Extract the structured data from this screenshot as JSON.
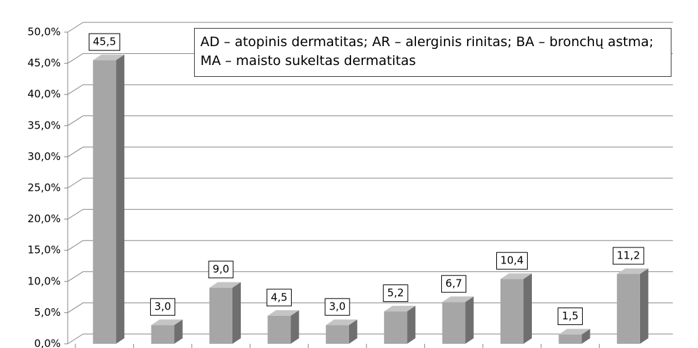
{
  "chart_data": {
    "type": "bar",
    "annotation": "AD – atopinis dermatitas; AR – alerginis rinitas; BA – bronchų astma; MA – maisto sukeltas dermatitas",
    "categories": [
      null,
      null,
      null,
      null,
      null,
      null,
      null,
      null,
      null,
      null
    ],
    "values": [
      45.5,
      3.0,
      9.0,
      4.5,
      3.0,
      5.2,
      6.7,
      10.4,
      1.5,
      11.2
    ],
    "value_labels": [
      "45,5",
      "3,0",
      "9,0",
      "4,5",
      "3,0",
      "5,2",
      "6,7",
      "10,4",
      "1,5",
      "11,2"
    ],
    "color": "#a6a6a6",
    "ylim": [
      0,
      50
    ],
    "yticks": [
      {
        "value": 0,
        "label": "0,0%"
      },
      {
        "value": 5,
        "label": "5,0%"
      },
      {
        "value": 10,
        "label": "10,0%"
      },
      {
        "value": 15,
        "label": "15,0%"
      },
      {
        "value": 20,
        "label": "20,0%"
      },
      {
        "value": 25,
        "label": "25,0%"
      },
      {
        "value": 30,
        "label": "30,0%"
      },
      {
        "value": 35,
        "label": "35,0%"
      },
      {
        "value": 40,
        "label": "40,0%"
      },
      {
        "value": 45,
        "label": "45,0%"
      },
      {
        "value": 50,
        "label": "50,0%"
      }
    ],
    "grid": true
  }
}
